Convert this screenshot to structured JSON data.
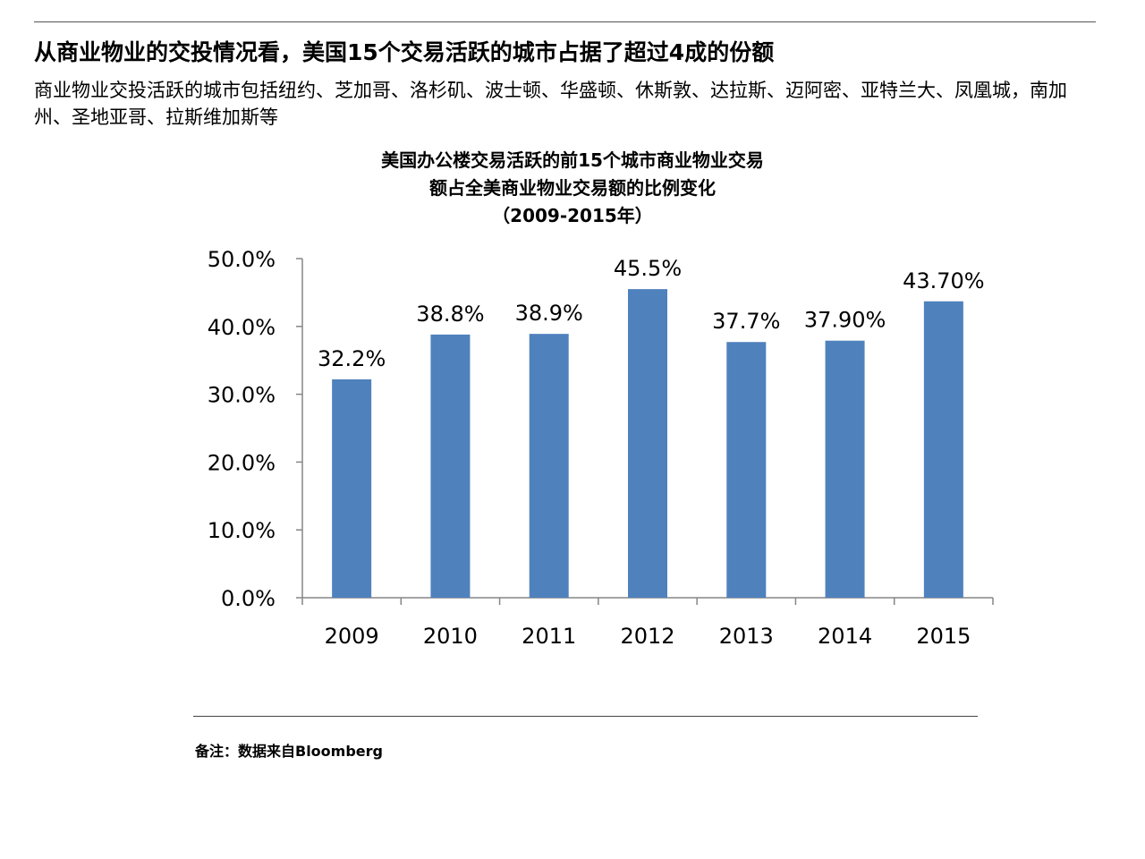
{
  "headline": "从商业物业的交投情况看，美国15个交易活跃的城市占据了超过4成的份额",
  "subtext": "商业物业交投活跃的城市包括纽约、芝加哥、洛杉矶、波士顿、华盛顿、休斯敦、达拉斯、迈阿密、亚特兰大、凤凰城，南加州、圣地亚哥、拉斯维加斯等",
  "footnote": "备注：数据来自Bloomberg",
  "colors": {
    "bar": "#4f81bd",
    "axis": "#868686"
  },
  "chart_data": {
    "type": "bar",
    "title_lines": [
      "美国办公楼交易活跃的前15个城市商业物业交易",
      "额占全美商业物业交易额的比例变化",
      "（2009-2015年）"
    ],
    "categories": [
      "2009",
      "2010",
      "2011",
      "2012",
      "2013",
      "2014",
      "2015"
    ],
    "values": [
      32.2,
      38.8,
      38.9,
      45.5,
      37.7,
      37.9,
      43.7
    ],
    "data_labels": [
      "32.2%",
      "38.8%",
      "38.9%",
      "45.5%",
      "37.7%",
      "37.90%",
      "43.70%"
    ],
    "y_ticks": [
      "0.0%",
      "10.0%",
      "20.0%",
      "30.0%",
      "40.0%",
      "50.0%"
    ],
    "ylim": [
      0,
      50
    ],
    "xlabel": "",
    "ylabel": "",
    "grid": false,
    "legend": "none"
  }
}
